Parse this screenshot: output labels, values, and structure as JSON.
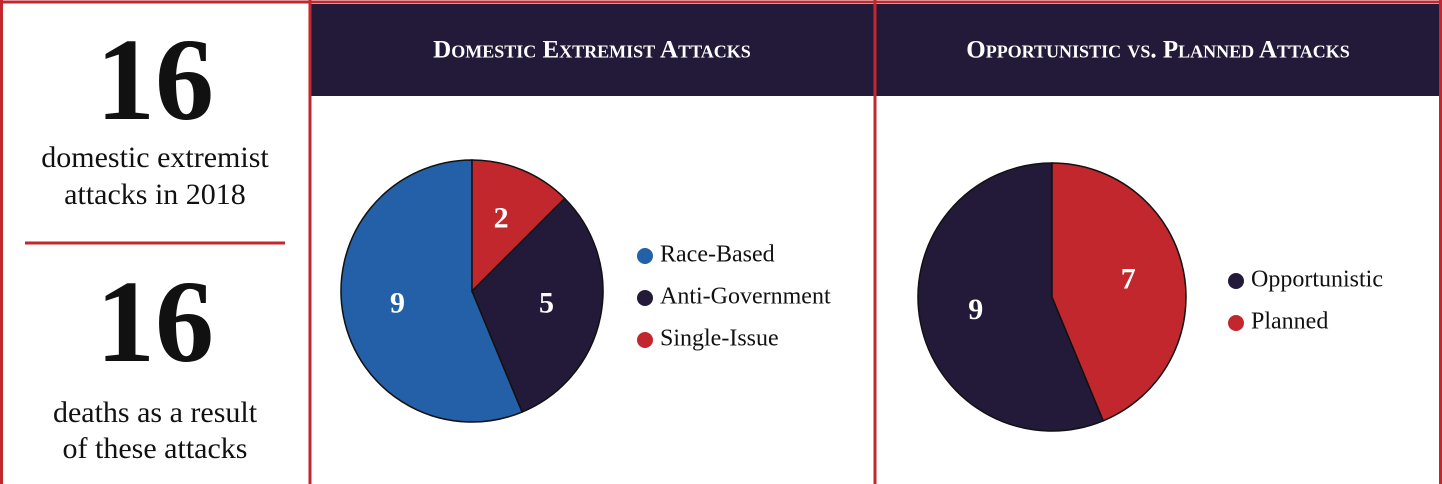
{
  "stats": [
    {
      "value": 16,
      "lines": [
        "domestic extremist",
        "attacks in 2018"
      ]
    },
    {
      "value": 16,
      "lines": [
        "deaths as a result",
        "of these attacks"
      ]
    }
  ],
  "chart_data": [
    {
      "type": "pie",
      "title": "Domestic Extremist Attacks",
      "categories": [
        "Race-Based",
        "Anti-Government",
        "Single-Issue"
      ],
      "values": [
        9,
        5,
        2
      ],
      "colors": [
        "#2460a7",
        "#231a3a",
        "#c1272d"
      ]
    },
    {
      "type": "pie",
      "title": "Opportunistic vs. Planned Attacks",
      "categories": [
        "Opportunistic",
        "Planned"
      ],
      "values": [
        9,
        7
      ],
      "colors": [
        "#231a3a",
        "#c1272d"
      ]
    }
  ]
}
